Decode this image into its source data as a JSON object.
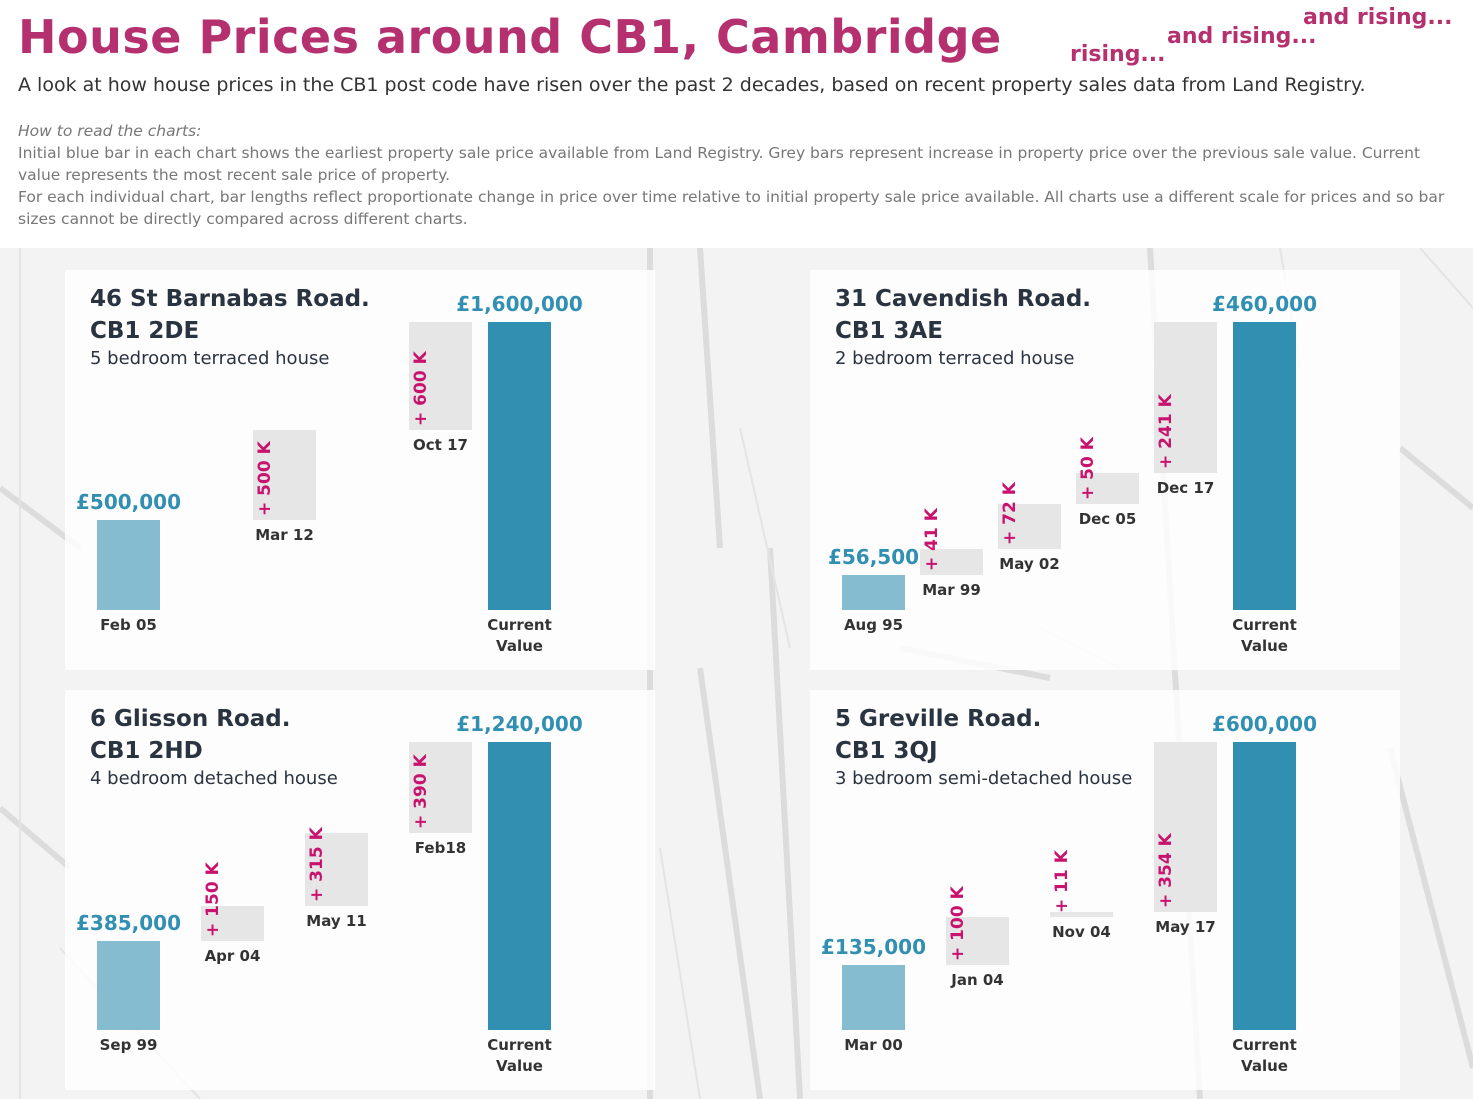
{
  "title": "House Prices around CB1, Cambridge",
  "rising": [
    "rising...",
    "and rising...",
    "and rising..."
  ],
  "subtitle": "A look at how house prices in the CB1 post code have risen over the past 2 decades, based on recent property sales data from Land Registry.",
  "how_to": {
    "heading": "How to read the charts:",
    "paragraphs": [
      "Initial blue bar in each chart shows the earliest property sale price available from Land Registry. Grey bars represent increase in property price over the previous sale value. Current value represents the most recent sale price of property.",
      "For each individual chart, bar lengths reflect proportionate change in price over time relative to initial property sale price available. All charts use a different scale for prices and so bar sizes cannot be directly compared across different charts."
    ]
  },
  "chart_data": [
    {
      "type": "waterfall",
      "title": "46 St Barnabas Road.",
      "postcode": "CB1 2DE",
      "subtitle": "5 bedroom terraced house",
      "categories": [
        "Feb 05",
        "Mar 12",
        "Oct 17",
        "Current Value"
      ],
      "values": [
        500000,
        500000,
        600000,
        1600000
      ],
      "value_labels": [
        "£500,000",
        "+ 500 K",
        "+ 600 K",
        "£1,600,000"
      ],
      "measures": [
        "absolute",
        "relative",
        "relative",
        "total"
      ],
      "colors": {
        "absolute": "#86bcd0",
        "relative": "#e6e6e6",
        "total": "#318fb2"
      }
    },
    {
      "type": "waterfall",
      "title": "31 Cavendish Road.",
      "postcode": "CB1 3AE",
      "subtitle": "2 bedroom terraced house",
      "categories": [
        "Aug 95",
        "Mar 99",
        "May 02",
        "Dec 05",
        "Dec 17",
        "Current Value"
      ],
      "values": [
        56500,
        41000,
        72000,
        50000,
        241000,
        460000
      ],
      "value_labels": [
        "£56,500",
        "+ 41 K",
        "+ 72 K",
        "+ 50 K",
        "+ 241 K",
        "£460,000"
      ],
      "measures": [
        "absolute",
        "relative",
        "relative",
        "relative",
        "relative",
        "total"
      ],
      "colors": {
        "absolute": "#86bcd0",
        "relative": "#e6e6e6",
        "total": "#318fb2"
      }
    },
    {
      "type": "waterfall",
      "title": "6 Glisson Road.",
      "postcode": "CB1 2HD",
      "subtitle": "4 bedroom detached house",
      "categories": [
        "Sep 99",
        "Apr 04",
        "May 11",
        "Feb18",
        "Current Value"
      ],
      "values": [
        385000,
        150000,
        315000,
        390000,
        1240000
      ],
      "value_labels": [
        "£385,000",
        "+ 150 K",
        "+ 315 K",
        "+ 390 K",
        "£1,240,000"
      ],
      "measures": [
        "absolute",
        "relative",
        "relative",
        "relative",
        "total"
      ],
      "colors": {
        "absolute": "#86bcd0",
        "relative": "#e6e6e6",
        "total": "#318fb2"
      }
    },
    {
      "type": "waterfall",
      "title": "5 Greville Road.",
      "postcode": "CB1 3QJ",
      "subtitle": "3 bedroom semi-detached house",
      "categories": [
        "Mar 00",
        "Jan 04",
        "Nov 04",
        "May 17",
        "Current Value"
      ],
      "values": [
        135000,
        100000,
        11000,
        354000,
        600000
      ],
      "value_labels": [
        "£135,000",
        "+ 100 K",
        "+ 11 K",
        "+ 354 K",
        "£600,000"
      ],
      "measures": [
        "absolute",
        "relative",
        "relative",
        "relative",
        "total"
      ],
      "colors": {
        "absolute": "#86bcd0",
        "relative": "#e6e6e6",
        "total": "#318fb2"
      }
    }
  ]
}
